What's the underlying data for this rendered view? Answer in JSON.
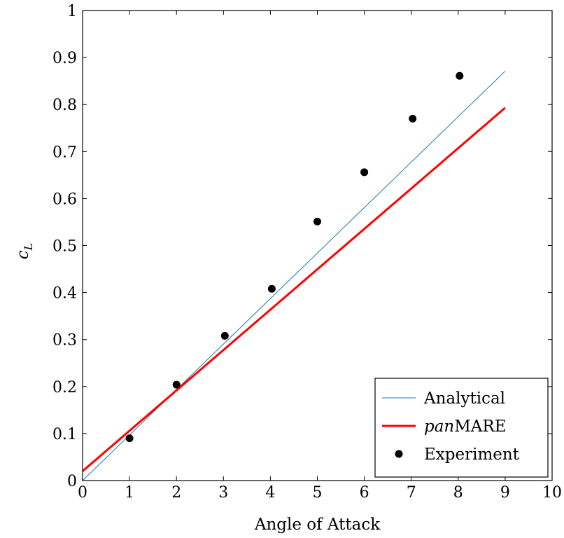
{
  "chart_data": {
    "type": "line",
    "xlabel": "Angle of Attack",
    "ylabel": "c",
    "ylabel_subscript": "L",
    "xlim": [
      0,
      10
    ],
    "ylim": [
      0,
      1
    ],
    "x_ticks": [
      0,
      1,
      2,
      3,
      4,
      5,
      6,
      7,
      8,
      9,
      10
    ],
    "y_ticks": [
      0,
      0.1,
      0.2,
      0.3,
      0.4,
      0.5,
      0.6,
      0.7,
      0.8,
      0.9,
      1
    ],
    "x_tick_labels": [
      "0",
      "1",
      "2",
      "3",
      "4",
      "5",
      "6",
      "7",
      "8",
      "9",
      "10"
    ],
    "y_tick_labels": [
      "0",
      "0.1",
      "0.2",
      "0.3",
      "0.4",
      "0.5",
      "0.6",
      "0.7",
      "0.8",
      "0.9",
      "1"
    ],
    "grid": false,
    "legend_position": "bottom-right",
    "series": [
      {
        "name": "Analytical",
        "kind": "line",
        "color": "#1f77b4",
        "x": [
          0,
          9
        ],
        "y": [
          0,
          0.871
        ]
      },
      {
        "name_italic": "pan",
        "name_rest": "MARE",
        "kind": "line",
        "color": "#ff0000",
        "x": [
          0,
          9
        ],
        "y": [
          0.02,
          0.793
        ]
      },
      {
        "name": "Experiment",
        "kind": "scatter",
        "color": "#000000",
        "x": [
          1,
          2,
          3.03,
          4.03,
          5,
          6,
          7.03,
          8.03
        ],
        "y": [
          0.09,
          0.204,
          0.308,
          0.408,
          0.551,
          0.656,
          0.77,
          0.861
        ]
      }
    ]
  }
}
